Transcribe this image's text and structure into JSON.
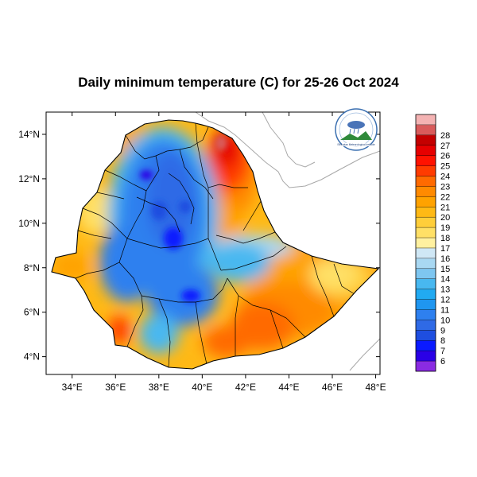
{
  "title": "Daily minimum temperature (C) for 25-26 Oct 2024",
  "map": {
    "lon_ticks": [
      "34°E",
      "36°E",
      "38°E",
      "40°E",
      "42°E",
      "44°E",
      "46°E",
      "48°E"
    ],
    "lat_ticks": [
      "14°N",
      "12°N",
      "10°N",
      "8°N",
      "6°N",
      "4°N"
    ],
    "lon_values": [
      34,
      36,
      38,
      40,
      42,
      44,
      46,
      48
    ],
    "lat_values": [
      14,
      12,
      10,
      8,
      6,
      4
    ],
    "lon_range": [
      32.8,
      48.2
    ],
    "lat_range": [
      3.2,
      15.0
    ]
  },
  "colorbar": {
    "levels": [
      "6",
      "7",
      "8",
      "9",
      "10",
      "11",
      "12",
      "13",
      "14",
      "15",
      "16",
      "17",
      "18",
      "19",
      "20",
      "21",
      "22",
      "23",
      "24",
      "25",
      "26",
      "27",
      "28"
    ],
    "colors": [
      "#8a2be2",
      "#2a00e6",
      "#0a1aff",
      "#1e4ee0",
      "#2f6ae6",
      "#2e80ef",
      "#1f96f0",
      "#21aaf2",
      "#48b8f0",
      "#7ec6f0",
      "#a9d8f2",
      "#cfe7f5",
      "#fff1a0",
      "#ffe066",
      "#ffce3a",
      "#ffb915",
      "#ffa200",
      "#ff8a00",
      "#ff6a00",
      "#ff3b00",
      "#ff1200",
      "#e60000",
      "#c40000",
      "#d95b5b",
      "#f4b3b3"
    ]
  },
  "logo": {
    "agency_text": "Ethiopian Meteorological Institute"
  }
}
